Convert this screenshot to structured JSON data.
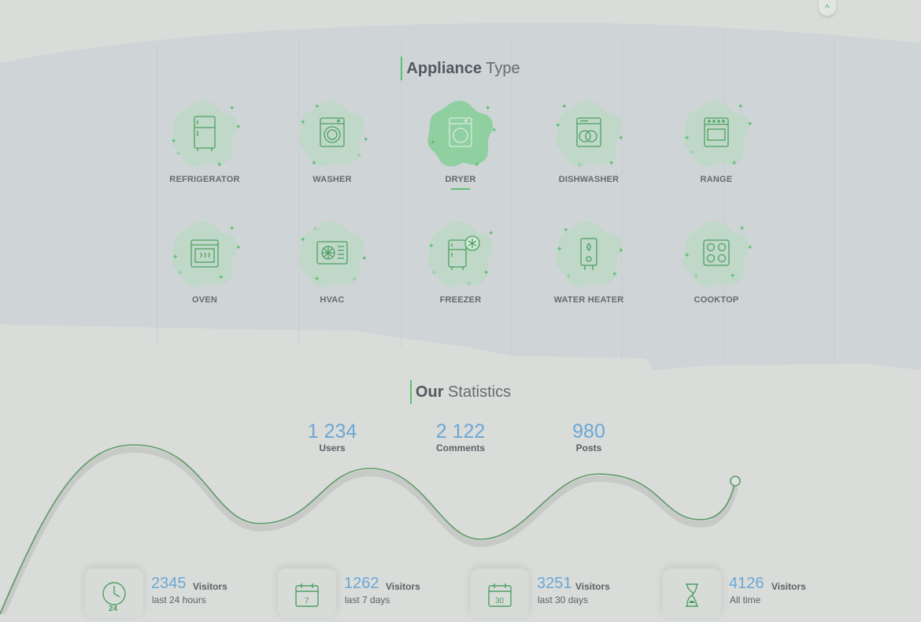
{
  "scroll_top": {
    "icon": "chevron-up-icon",
    "glyph": "^"
  },
  "appliance_section": {
    "title_bold": "Appliance",
    "title_rest": "Type"
  },
  "appliances": [
    {
      "label": "REFRIGERATOR",
      "icon": "refrigerator-icon"
    },
    {
      "label": "WASHER",
      "icon": "washer-icon"
    },
    {
      "label": "DRYER",
      "icon": "dryer-icon",
      "active": true
    },
    {
      "label": "DISHWASHER",
      "icon": "dishwasher-icon"
    },
    {
      "label": "RANGE",
      "icon": "range-icon"
    },
    {
      "label": "OVEN",
      "icon": "oven-icon"
    },
    {
      "label": "HVAC",
      "icon": "hvac-icon"
    },
    {
      "label": "FREEZER",
      "icon": "freezer-icon"
    },
    {
      "label": "WATER HEATER",
      "icon": "water-heater-icon"
    },
    {
      "label": "COOKTOP",
      "icon": "cooktop-icon"
    }
  ],
  "stats_section": {
    "title_bold": "Our",
    "title_rest": "Statistics"
  },
  "stats": [
    {
      "value": "1 234",
      "label": "Users"
    },
    {
      "value": "2 122",
      "label": "Comments"
    },
    {
      "value": "980",
      "label": "Posts"
    }
  ],
  "visitors": [
    {
      "count": "2345",
      "word": "Visitors",
      "period": "last 24 hours",
      "icon": "clock-24-icon",
      "icon_text": "24"
    },
    {
      "count": "1262",
      "word": "Visitors",
      "period": "last 7 days",
      "icon": "calendar-7-icon",
      "icon_text": "7"
    },
    {
      "count": "3251",
      "word": "Visitors",
      "period": "last 30 days",
      "icon": "calendar-30-icon",
      "icon_text": "30"
    },
    {
      "count": "4126",
      "word": "Visitors",
      "period": "All time",
      "icon": "hourglass-icon",
      "icon_text": ""
    }
  ],
  "colors": {
    "page_bg": "#d9dcd9",
    "band_bg": "#cfd4d6",
    "accent_green": "#5cbf74",
    "blob_fill": "#bfd8c8",
    "blob_active": "#8fcfa0",
    "icon_stroke": "#4f9f63",
    "number_blue": "#6ca7d5",
    "label_gray": "#656a6d"
  }
}
